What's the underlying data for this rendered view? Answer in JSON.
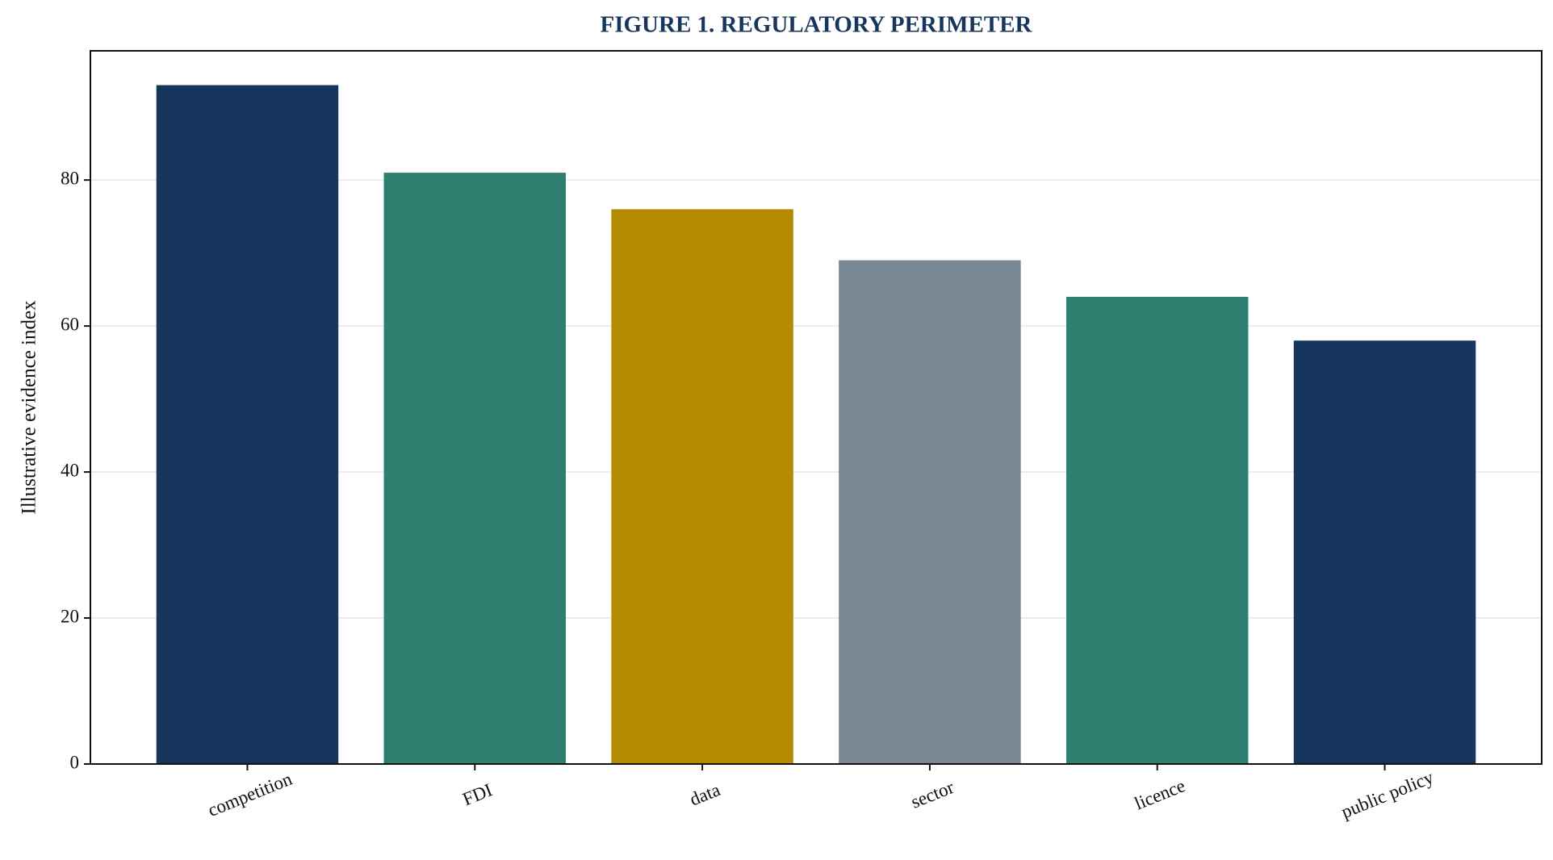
{
  "chart_data": {
    "type": "bar",
    "title": "FIGURE 1. REGULATORY PERIMETER",
    "y_label": "Illustrative evidence index",
    "categories": [
      "competition",
      "FDI",
      "data",
      "sector",
      "licence",
      "public policy"
    ],
    "values": [
      93,
      81,
      76,
      69,
      64,
      58
    ],
    "colors": [
      "#17365d",
      "#2e7f6f",
      "#b38a00",
      "#7a8795",
      "#2e7f6f",
      "#17365d"
    ],
    "ylim": [
      0,
      97.7
    ],
    "yticks": [
      0,
      20,
      40,
      60,
      80
    ],
    "grid": true
  }
}
